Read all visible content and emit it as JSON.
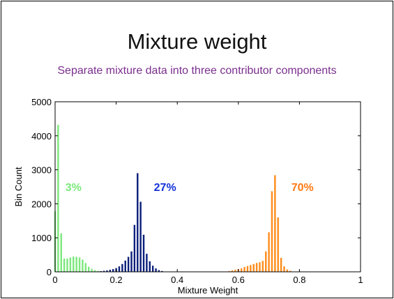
{
  "slide": {
    "title": "Mixture weight",
    "subtitle": "Separate mixture data into three contributor components"
  },
  "chart_data": {
    "type": "bar",
    "xlabel": "Mixture Weight",
    "ylabel": "Bin Count",
    "xlim": [
      0,
      1
    ],
    "ylim": [
      0,
      5000
    ],
    "xticks": [
      "0",
      "0.2",
      "0.4",
      "0.6",
      "0.8",
      "1"
    ],
    "yticks": [
      "0",
      "1000",
      "2000",
      "3000",
      "4000",
      "5000"
    ],
    "grid": false,
    "annotations": [
      {
        "text": "3%",
        "x": 0.06,
        "y": 2500,
        "color": "#7CE87C"
      },
      {
        "text": "27%",
        "x": 0.36,
        "y": 2500,
        "color": "#1432d8"
      },
      {
        "text": "70%",
        "x": 0.81,
        "y": 2500,
        "color": "#ff7a14"
      }
    ],
    "series": [
      {
        "color": "#7CE87C",
        "x": [
          0.0,
          0.01,
          0.02,
          0.03,
          0.04,
          0.05,
          0.06,
          0.07,
          0.08,
          0.09,
          0.1,
          0.11,
          0.12,
          0.13,
          0.14,
          0.15,
          0.16
        ],
        "values": [
          1780,
          4320,
          1130,
          390,
          390,
          420,
          450,
          440,
          420,
          360,
          260,
          150,
          90,
          50,
          30,
          15,
          8
        ]
      },
      {
        "color": "#0b1f7a",
        "x": [
          0.13,
          0.14,
          0.15,
          0.16,
          0.17,
          0.18,
          0.19,
          0.2,
          0.21,
          0.22,
          0.23,
          0.24,
          0.25,
          0.26,
          0.27,
          0.28,
          0.29,
          0.3,
          0.31,
          0.32,
          0.33,
          0.34,
          0.35,
          0.36
        ],
        "values": [
          5,
          10,
          20,
          30,
          40,
          60,
          80,
          110,
          160,
          230,
          330,
          440,
          600,
          1380,
          2900,
          2060,
          1090,
          530,
          310,
          180,
          100,
          50,
          25,
          10
        ]
      },
      {
        "color": "#ff8c1a",
        "x": [
          0.56,
          0.57,
          0.58,
          0.59,
          0.6,
          0.61,
          0.62,
          0.63,
          0.64,
          0.65,
          0.66,
          0.67,
          0.68,
          0.69,
          0.7,
          0.71,
          0.72,
          0.73,
          0.74,
          0.75,
          0.76,
          0.77,
          0.78
        ],
        "values": [
          10,
          20,
          40,
          60,
          80,
          100,
          140,
          170,
          200,
          230,
          260,
          280,
          320,
          600,
          1160,
          2370,
          2840,
          1600,
          410,
          160,
          70,
          30,
          10
        ]
      }
    ]
  }
}
